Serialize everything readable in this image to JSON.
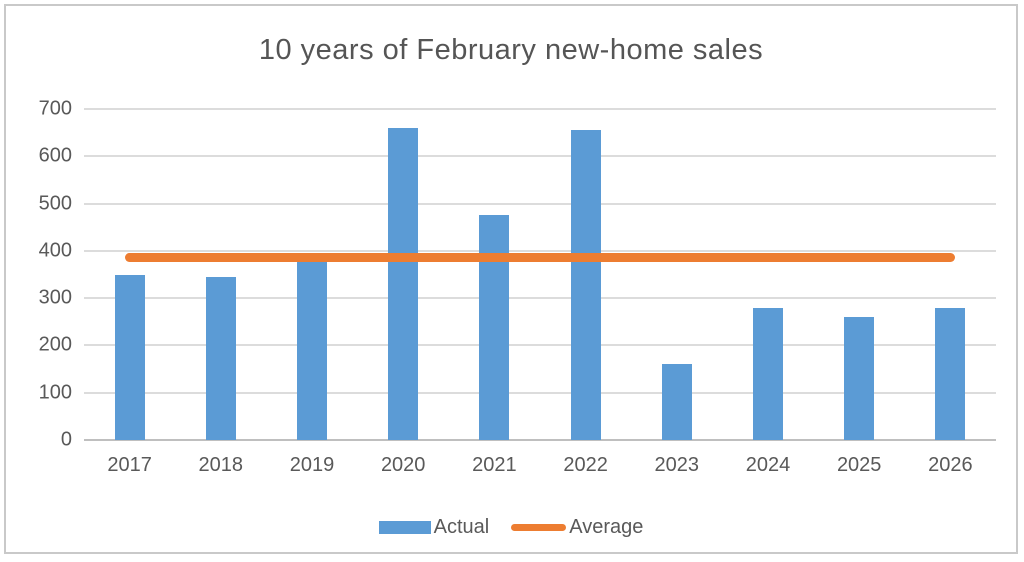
{
  "chart_data": {
    "type": "bar",
    "title": "10 years of February new-home sales",
    "categories": [
      "2017",
      "2018",
      "2019",
      "2020",
      "2021",
      "2022",
      "2023",
      "2024",
      "2025",
      "2026"
    ],
    "series": [
      {
        "name": "Actual",
        "type": "bar",
        "color": "#5B9BD5",
        "values": [
          350,
          345,
          380,
          660,
          475,
          655,
          160,
          280,
          260,
          280
        ]
      },
      {
        "name": "Average",
        "type": "line",
        "color": "#ED7D31",
        "value": 385
      }
    ],
    "xlabel": "",
    "ylabel": "",
    "ylim": [
      0,
      700
    ],
    "yticks": [
      0,
      100,
      200,
      300,
      400,
      500,
      600,
      700
    ],
    "grid": true,
    "legend_position": "bottom",
    "colors": {
      "grid": "#DCDCDC",
      "axis": "#BFBFBF",
      "text": "#595959",
      "border": "#C9C9C9",
      "background": "#FFFFFF"
    }
  }
}
